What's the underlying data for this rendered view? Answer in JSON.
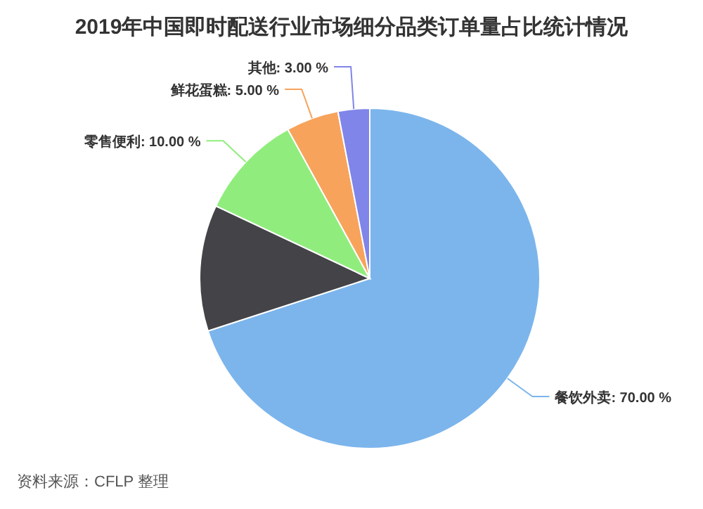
{
  "chart_data": {
    "type": "pie",
    "title": "2019年中国即时配送行业市场细分品类订单量占比统计情况",
    "categories": [
      "餐饮外卖",
      null,
      "零售便利",
      "鲜花蛋糕",
      "其他"
    ],
    "values": [
      70,
      12,
      10,
      5,
      3
    ],
    "value_labels": [
      "70.00 %",
      null,
      "10.00 %",
      "5.00 %",
      "3.00 %"
    ],
    "colors": [
      "#7cb5ec",
      "#434348",
      "#90ed7d",
      "#f7a35c",
      "#8085e9"
    ],
    "annotations": [
      "资料来源：CFLP 整理"
    ]
  }
}
